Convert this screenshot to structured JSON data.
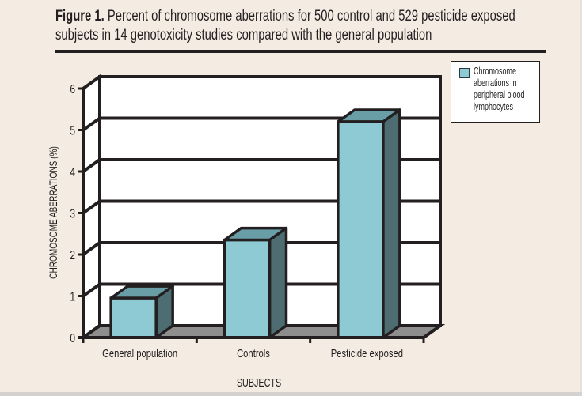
{
  "chart_data": {
    "type": "bar",
    "title_bold": "Figure 1.",
    "title": "Percent of chromosome aberrations for 500 control and 529 pesticide exposed subjects in 14 genotoxicity studies compared with the general population",
    "title_line1": "Percent of chromosome aberrations for 500 control and 529 pesticide exposed",
    "title_line2": "subjects in 14 genotoxicity studies compared with the general population",
    "categories": [
      "General population",
      "Controls",
      "Pesticide exposed"
    ],
    "series": [
      {
        "name": "Chromosome aberrations in peripheral blood lymphocytes",
        "values": [
          0.95,
          2.35,
          5.2
        ]
      }
    ],
    "xlabel": "SUBJECTS",
    "ylabel": "CHROMOSOME ABERRATIONS (%)",
    "ylim": [
      0,
      6
    ],
    "yticks": [
      "0",
      "1",
      "2",
      "3",
      "4",
      "5",
      "6"
    ],
    "grid": true,
    "legend_position": "top-right",
    "legend_lines": [
      "Chromosome",
      "aberrations in",
      "peripheral blood",
      "lymphocytes"
    ],
    "style": "3d-bar",
    "colors": {
      "bar_front": "#8dcad4",
      "bar_top": "#6a9ea6",
      "bar_side": "#4d6d72",
      "floor": "#8e8e8e",
      "outline": "#231f20",
      "background": "#f4ebe2"
    }
  }
}
